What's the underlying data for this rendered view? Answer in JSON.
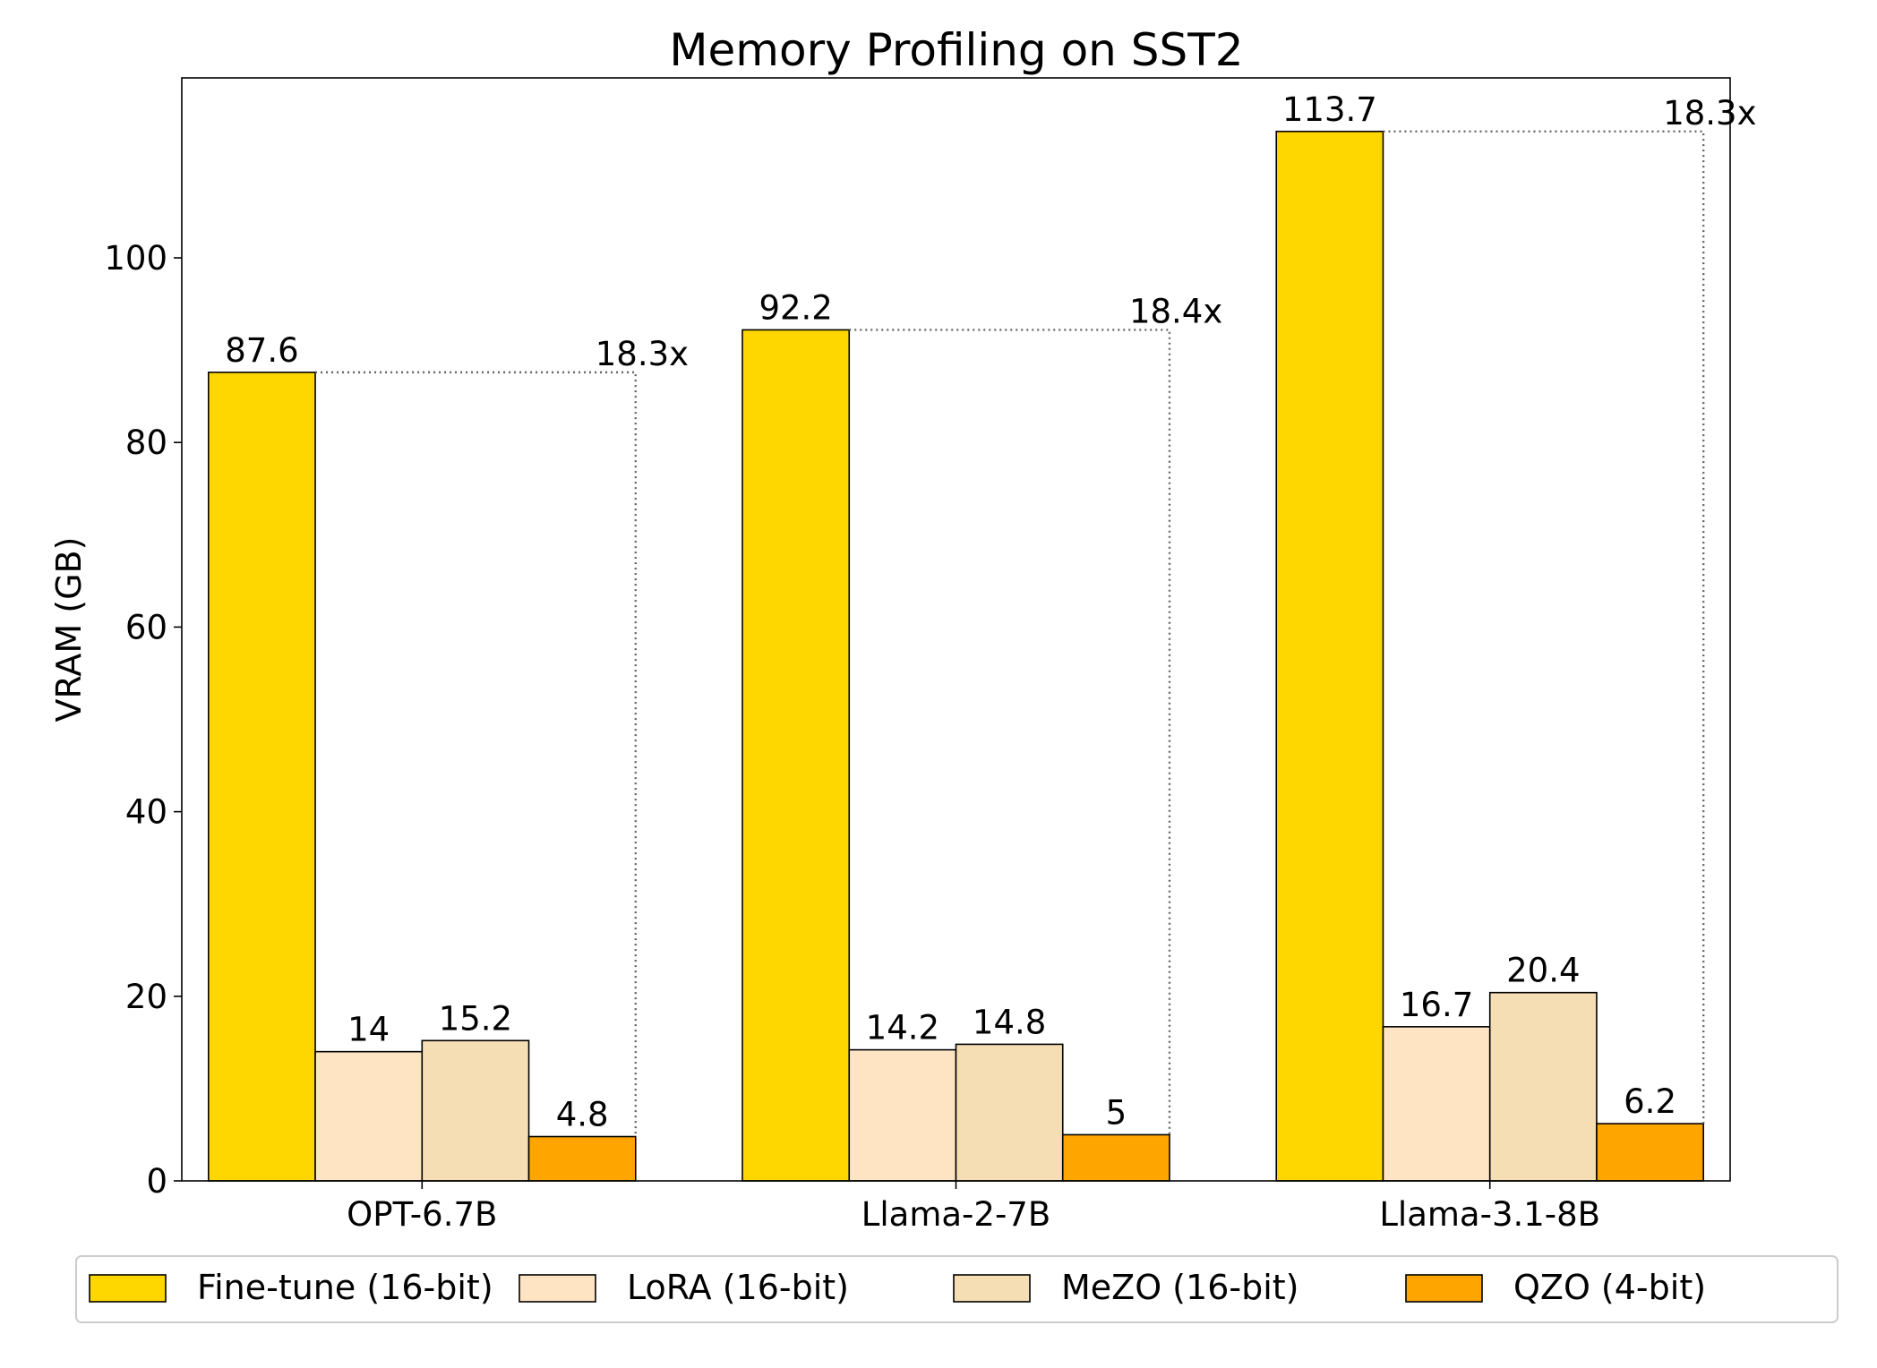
{
  "chart_data": {
    "type": "bar",
    "title": "Memory Profiling on SST2",
    "xlabel": "",
    "ylabel": "VRAM (GB)",
    "ylim": [
      0,
      119.5
    ],
    "yticks": [
      0,
      20,
      40,
      60,
      80,
      100
    ],
    "grid": false,
    "categories": [
      "OPT-6.7B",
      "Llama-2-7B",
      "Llama-3.1-8B"
    ],
    "series": [
      {
        "name": "Fine-tune (16-bit)",
        "color": "#FFD700",
        "values": [
          87.6,
          92.2,
          113.7
        ],
        "labels": [
          "87.6",
          "92.2",
          "113.7"
        ]
      },
      {
        "name": "LoRA (16-bit)",
        "color": "#FFE4C4",
        "values": [
          14,
          14.2,
          16.7
        ],
        "labels": [
          "14",
          "14.2",
          "16.7"
        ]
      },
      {
        "name": "MeZO (16-bit)",
        "color": "#F5DEB3",
        "values": [
          15.2,
          14.8,
          20.4
        ],
        "labels": [
          "15.2",
          "14.8",
          "20.4"
        ]
      },
      {
        "name": "QZO (4-bit)",
        "color": "#FFA500",
        "values": [
          4.8,
          5,
          6.2
        ],
        "labels": [
          "4.8",
          "5",
          "6.2"
        ]
      }
    ],
    "annotations": [
      "18.3x",
      "18.4x",
      "18.3x"
    ],
    "legend": {
      "placement": "bottom",
      "columns": 4
    }
  }
}
